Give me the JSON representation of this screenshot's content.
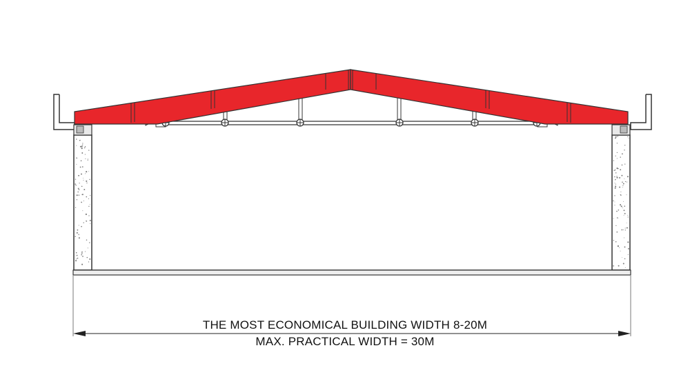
{
  "caption": {
    "line1": "THE MOST ECONOMICAL BUILDING WIDTH 8-20M",
    "line2": "MAX. PRACTICAL WIDTH = 30M"
  },
  "colors": {
    "rafter": "#e8262b",
    "outline": "#333333",
    "wall_fill": "#ffffff",
    "speckle": "#7a7a7a",
    "dimension": "#222222",
    "caption_text": "#111111"
  },
  "icons": {
    "dimension_arrow_left": "arrowhead-left",
    "dimension_arrow_right": "arrowhead-right"
  }
}
